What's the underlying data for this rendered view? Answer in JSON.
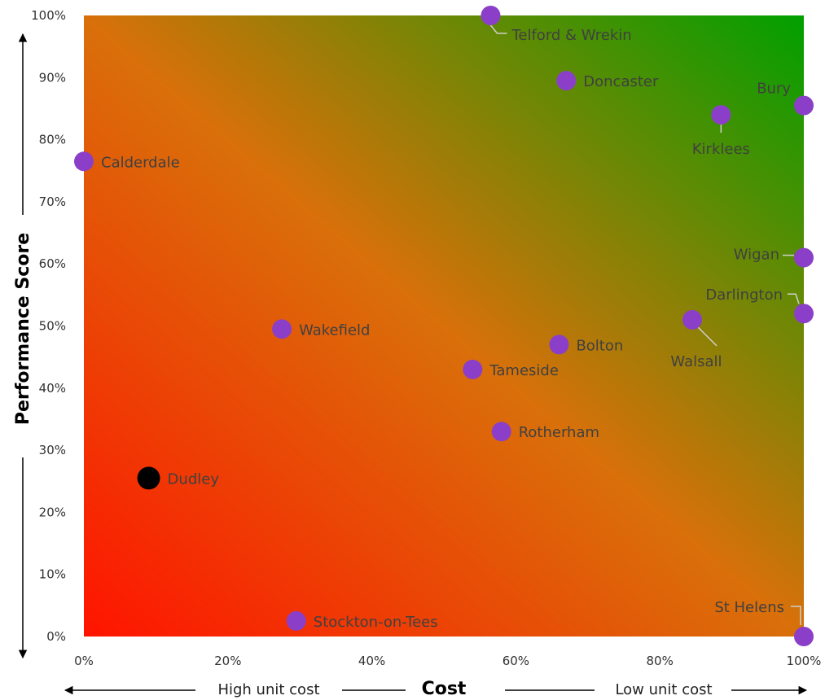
{
  "chart_data": {
    "type": "scatter",
    "xlabel": "Cost",
    "ylabel": "Performance Score",
    "x_low_label": "High unit cost",
    "x_high_label": "Low unit cost",
    "xlim": [
      0,
      100
    ],
    "ylim": [
      0,
      100
    ],
    "x_ticks": [
      "0%",
      "20%",
      "40%",
      "60%",
      "80%",
      "100%"
    ],
    "y_ticks": [
      "0%",
      "10%",
      "20%",
      "30%",
      "40%",
      "50%",
      "60%",
      "70%",
      "80%",
      "90%",
      "100%"
    ],
    "background": {
      "low_color": "#ff1400",
      "mid_color": "#d9700a",
      "high_color": "#00a000"
    },
    "colors": {
      "point": "#8b3fc8",
      "highlight": "#000000"
    },
    "points": [
      {
        "name": "Telford & Wrekin",
        "x": 56.5,
        "y": 100
      },
      {
        "name": "Doncaster",
        "x": 67,
        "y": 89.5
      },
      {
        "name": "Bury",
        "x": 100,
        "y": 85.5
      },
      {
        "name": "Kirklees",
        "x": 88.5,
        "y": 84
      },
      {
        "name": "Calderdale",
        "x": 0,
        "y": 76.5
      },
      {
        "name": "Wigan",
        "x": 100,
        "y": 61
      },
      {
        "name": "Darlington",
        "x": 100,
        "y": 52
      },
      {
        "name": "Walsall",
        "x": 84.5,
        "y": 51
      },
      {
        "name": "Wakefield",
        "x": 27.5,
        "y": 49.5
      },
      {
        "name": "Bolton",
        "x": 66,
        "y": 47
      },
      {
        "name": "Tameside",
        "x": 54,
        "y": 43
      },
      {
        "name": "Rotherham",
        "x": 58,
        "y": 33
      },
      {
        "name": "Dudley",
        "x": 9,
        "y": 25.5,
        "highlight": true
      },
      {
        "name": "Stockton-on-Tees",
        "x": 29.5,
        "y": 2.5
      },
      {
        "name": "St Helens",
        "x": 100,
        "y": 0
      }
    ]
  }
}
